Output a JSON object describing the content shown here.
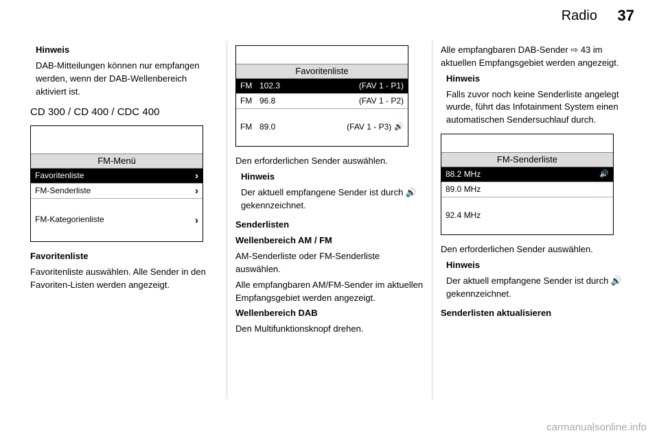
{
  "header": {
    "section": "Radio",
    "page": "37"
  },
  "col1": {
    "note": {
      "heading": "Hinweis",
      "body": "DAB-Mitteilungen können nur empfangen werden, wenn der DAB-Wellenbereich aktiviert ist."
    },
    "section_heading": "CD 300 / CD 400 / CDC 400",
    "screen1": {
      "title": "FM-Menü",
      "rows": [
        {
          "label": "Favoritenliste",
          "selected": true,
          "chevron": true
        },
        {
          "label": "FM-Senderliste",
          "selected": false,
          "chevron": true
        },
        {
          "label": "FM-Kategorienliste",
          "selected": false,
          "chevron": true
        }
      ]
    },
    "sub1": {
      "heading": "Favoritenliste",
      "body": "Favoritenliste auswählen. Alle Sender in den Favoriten-Listen werden angezeigt."
    }
  },
  "col2": {
    "screen2": {
      "title": "Favoritenliste",
      "rows": [
        {
          "band": "FM",
          "freq": "102.3",
          "right": "(FAV 1 - P1)",
          "selected": true,
          "speaker": false
        },
        {
          "band": "FM",
          "freq": "96.8",
          "right": "(FAV 1 - P2)",
          "selected": false,
          "speaker": false
        },
        {
          "band": "FM",
          "freq": "89.0",
          "right": "(FAV 1 - P3)",
          "selected": false,
          "speaker": true
        }
      ]
    },
    "p1": "Den erforderlichen Sender auswählen.",
    "note2": {
      "heading": "Hinweis",
      "body": "Der aktuell empfangene Sender ist durch 🔊 gekennzeichnet."
    },
    "sub2": {
      "heading": "Senderlisten"
    },
    "p2a": "Wellenbereich AM / FM",
    "p2b": "AM-Senderliste oder FM-Senderliste auswählen.",
    "p2c": "Alle empfangbaren AM/FM-Sender im aktuellen Empfangsgebiet werden angezeigt.",
    "p2d": "Wellenbereich DAB",
    "p2e": "Den Multifunktionsknopf drehen."
  },
  "col3": {
    "p3": "Alle empfangbaren DAB-Sender ⇨ 43 im aktuellen Empfangsgebiet werden angezeigt.",
    "note3": {
      "heading": "Hinweis",
      "body": "Falls zuvor noch keine Senderliste angelegt wurde, führt das Infotainment System einen automatischen Sendersuchlauf durch."
    },
    "screen3": {
      "title": "FM-Senderliste",
      "rows": [
        {
          "label": "88.2 MHz",
          "selected": true,
          "speaker": true
        },
        {
          "label": "89.0 MHz",
          "selected": false,
          "speaker": false
        },
        {
          "label": "92.4 MHz",
          "selected": false,
          "speaker": false
        }
      ]
    },
    "p4": "Den erforderlichen Sender auswählen.",
    "note4": {
      "heading": "Hinweis",
      "body": "Der aktuell empfangene Sender ist durch 🔊 gekennzeichnet."
    },
    "sub3": "Senderlisten aktualisieren"
  },
  "watermark": "carmanualsonline.info"
}
